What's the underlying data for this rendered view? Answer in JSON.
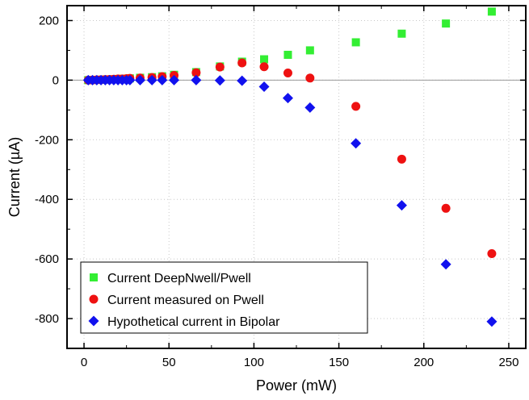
{
  "chart_data": {
    "type": "scatter",
    "xlabel": "Power (mW)",
    "ylabel": "Current (µA)",
    "xlim": [
      -10,
      260
    ],
    "ylim": [
      -900,
      250
    ],
    "x_ticks": [
      0,
      50,
      100,
      150,
      200,
      250
    ],
    "y_ticks": [
      -800,
      -600,
      -400,
      -200,
      0,
      200
    ],
    "grid": true,
    "zero_line": true,
    "legend_position": "bottom-left",
    "series": [
      {
        "name": "Current DeepNwell/Pwell",
        "color": "#33ee33",
        "marker": "square",
        "x": [
          2.5,
          5,
          7.5,
          10,
          12.5,
          15,
          17.5,
          20,
          22.5,
          25,
          27,
          33,
          40,
          46,
          53,
          66,
          80,
          93,
          106,
          120,
          133,
          160,
          187,
          213,
          240
        ],
        "y": [
          0,
          0.5,
          1,
          1.5,
          2,
          2.5,
          3,
          4,
          4.5,
          5,
          6,
          8,
          10,
          13,
          18,
          27,
          46,
          62,
          70,
          85,
          100,
          127,
          156,
          190,
          230
        ]
      },
      {
        "name": "Current measured on Pwell",
        "color": "#ee1111",
        "marker": "circle",
        "x": [
          2.5,
          5,
          7.5,
          10,
          12.5,
          15,
          17.5,
          20,
          22.5,
          25,
          27,
          33,
          40,
          46,
          53,
          66,
          80,
          93,
          106,
          120,
          133,
          160,
          187,
          213,
          240
        ],
        "y": [
          0,
          0.5,
          1,
          1.5,
          2,
          2.5,
          3,
          4,
          4,
          5,
          6,
          7,
          9,
          12,
          16,
          25,
          44,
          58,
          45,
          24,
          7,
          -88,
          -265,
          -430,
          -582
        ]
      },
      {
        "name": "Hypothetical current in Bipolar",
        "color": "#1111ee",
        "marker": "diamond",
        "x": [
          2.5,
          5,
          7.5,
          10,
          12.5,
          15,
          17.5,
          20,
          22.5,
          25,
          27,
          33,
          40,
          46,
          53,
          66,
          80,
          93,
          106,
          120,
          133,
          160,
          187,
          213,
          240
        ],
        "y": [
          0,
          0,
          0,
          0,
          0,
          0,
          0,
          0,
          0,
          0,
          0,
          0,
          0,
          0,
          0,
          0,
          -1,
          -2,
          -22,
          -60,
          -92,
          -212,
          -420,
          -618,
          -810
        ]
      }
    ]
  }
}
